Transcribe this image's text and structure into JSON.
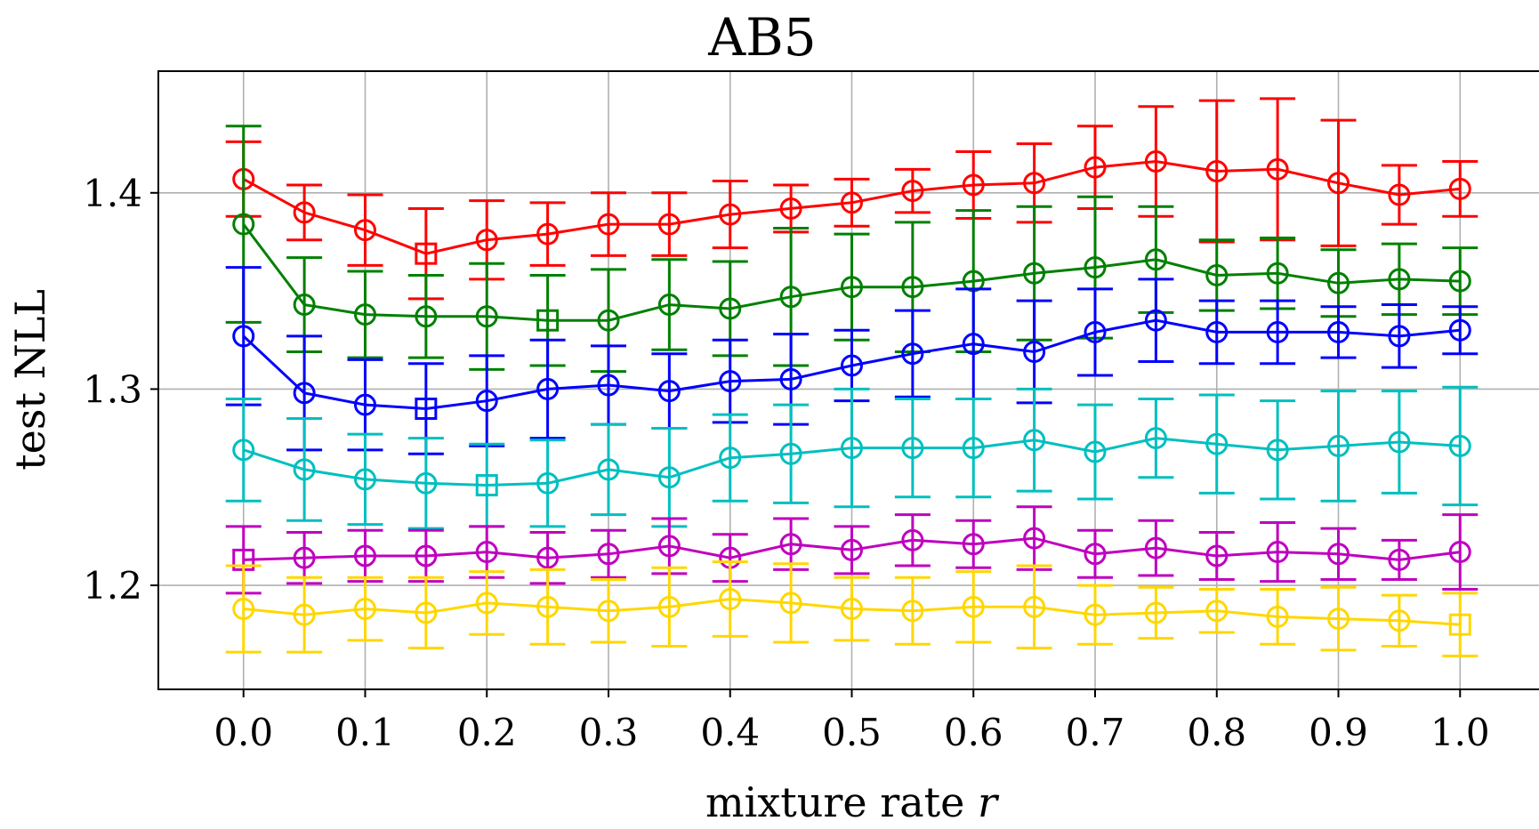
{
  "chart_data": {
    "type": "line",
    "title": "AB5",
    "xlabel": "mixture rate",
    "xlabel_var": "r",
    "ylabel": "test NLL",
    "xlim": [
      -0.07,
      1.07
    ],
    "ylim": [
      1.147,
      1.462
    ],
    "xticks": [
      0.0,
      0.1,
      0.2,
      0.3,
      0.4,
      0.5,
      0.6,
      0.7,
      0.8,
      0.9,
      1.0
    ],
    "xtick_labels": [
      "0.0",
      "0.1",
      "0.2",
      "0.3",
      "0.4",
      "0.5",
      "0.6",
      "0.7",
      "0.8",
      "0.9",
      "1.0"
    ],
    "yticks": [
      1.2,
      1.3,
      1.4
    ],
    "ytick_labels": [
      "1.2",
      "1.3",
      "1.4"
    ],
    "grid": true,
    "x": [
      0.0,
      0.05,
      0.1,
      0.15,
      0.2,
      0.25,
      0.3,
      0.35,
      0.4,
      0.45,
      0.5,
      0.55,
      0.6,
      0.65,
      0.7,
      0.75,
      0.8,
      0.85,
      0.9,
      0.95,
      1.0
    ],
    "series": [
      {
        "name": "red",
        "color": "#ff0000",
        "values": [
          1.407,
          1.39,
          1.381,
          1.369,
          1.376,
          1.379,
          1.384,
          1.384,
          1.389,
          1.392,
          1.395,
          1.401,
          1.404,
          1.405,
          1.413,
          1.416,
          1.411,
          1.412,
          1.405,
          1.399,
          1.402
        ],
        "err": [
          0.019,
          0.014,
          0.018,
          0.023,
          0.02,
          0.016,
          0.016,
          0.016,
          0.017,
          0.012,
          0.012,
          0.011,
          0.017,
          0.02,
          0.021,
          0.028,
          0.036,
          0.036,
          0.032,
          0.015,
          0.014
        ],
        "best_index": 3
      },
      {
        "name": "green",
        "color": "#008000",
        "values": [
          1.384,
          1.343,
          1.338,
          1.337,
          1.337,
          1.335,
          1.335,
          1.343,
          1.341,
          1.347,
          1.352,
          1.352,
          1.355,
          1.359,
          1.362,
          1.366,
          1.358,
          1.359,
          1.354,
          1.356,
          1.355
        ],
        "err": [
          0.05,
          0.024,
          0.022,
          0.021,
          0.027,
          0.023,
          0.026,
          0.023,
          0.024,
          0.035,
          0.027,
          0.033,
          0.036,
          0.034,
          0.036,
          0.027,
          0.018,
          0.018,
          0.017,
          0.018,
          0.017
        ],
        "best_index": 5
      },
      {
        "name": "blue",
        "color": "#0000ff",
        "values": [
          1.327,
          1.298,
          1.292,
          1.29,
          1.294,
          1.3,
          1.302,
          1.299,
          1.304,
          1.305,
          1.312,
          1.318,
          1.323,
          1.319,
          1.329,
          1.335,
          1.329,
          1.329,
          1.329,
          1.327,
          1.33
        ],
        "err": [
          0.035,
          0.029,
          0.023,
          0.023,
          0.023,
          0.025,
          0.02,
          0.019,
          0.021,
          0.023,
          0.018,
          0.022,
          0.028,
          0.026,
          0.022,
          0.021,
          0.016,
          0.016,
          0.013,
          0.016,
          0.012
        ],
        "best_index": 3
      },
      {
        "name": "cyan",
        "color": "#00bfbf",
        "values": [
          1.269,
          1.259,
          1.254,
          1.252,
          1.251,
          1.252,
          1.259,
          1.255,
          1.265,
          1.267,
          1.27,
          1.27,
          1.27,
          1.274,
          1.268,
          1.275,
          1.272,
          1.269,
          1.271,
          1.273,
          1.271
        ],
        "err": [
          0.026,
          0.026,
          0.023,
          0.023,
          0.021,
          0.022,
          0.023,
          0.025,
          0.022,
          0.025,
          0.03,
          0.025,
          0.025,
          0.026,
          0.024,
          0.02,
          0.025,
          0.025,
          0.028,
          0.026,
          0.03
        ],
        "best_index": 4
      },
      {
        "name": "magenta",
        "color": "#bf00bf",
        "values": [
          1.213,
          1.214,
          1.215,
          1.215,
          1.217,
          1.214,
          1.216,
          1.22,
          1.214,
          1.221,
          1.218,
          1.223,
          1.221,
          1.224,
          1.216,
          1.219,
          1.215,
          1.217,
          1.216,
          1.213,
          1.217
        ],
        "err": [
          0.017,
          0.013,
          0.013,
          0.013,
          0.013,
          0.013,
          0.012,
          0.014,
          0.012,
          0.013,
          0.012,
          0.013,
          0.012,
          0.016,
          0.012,
          0.014,
          0.012,
          0.015,
          0.013,
          0.01,
          0.019
        ],
        "best_index": 0
      },
      {
        "name": "gold",
        "color": "#ffd700",
        "values": [
          1.188,
          1.185,
          1.188,
          1.186,
          1.191,
          1.189,
          1.187,
          1.189,
          1.193,
          1.191,
          1.188,
          1.187,
          1.189,
          1.189,
          1.185,
          1.186,
          1.187,
          1.184,
          1.183,
          1.182,
          1.18
        ],
        "err": [
          0.022,
          0.019,
          0.016,
          0.018,
          0.016,
          0.019,
          0.016,
          0.02,
          0.019,
          0.02,
          0.016,
          0.017,
          0.018,
          0.021,
          0.015,
          0.013,
          0.011,
          0.014,
          0.016,
          0.013,
          0.016
        ],
        "best_index": 20
      }
    ]
  }
}
